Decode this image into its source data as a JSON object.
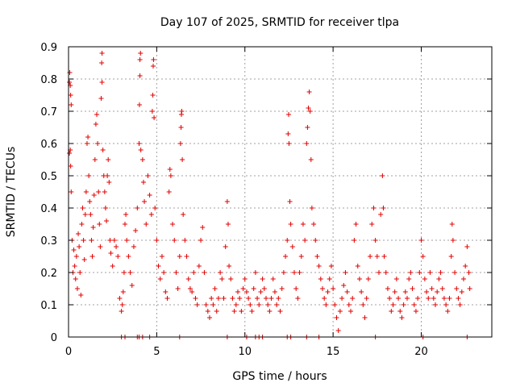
{
  "chart_data": {
    "type": "scatter",
    "title": "Day 107 of 2025, SRMTID for receiver tlpa",
    "xlabel": "GPS time / hours",
    "ylabel": "SRMTID / TECUs",
    "xlim": [
      0,
      24
    ],
    "ylim": [
      0,
      0.9
    ],
    "xticks": [
      0,
      5,
      10,
      15,
      20
    ],
    "xtick_labels": [
      "0",
      "5",
      "10",
      "15",
      "20"
    ],
    "yticks": [
      0,
      0.1,
      0.2,
      0.3,
      0.4,
      0.5,
      0.6,
      0.7,
      0.8,
      0.9
    ],
    "ytick_labels": [
      "0",
      "0.1",
      "0.2",
      "0.3",
      "0.4",
      "0.5",
      "0.6",
      "0.7",
      "0.8",
      "0.9"
    ],
    "grid": true,
    "marker": "+",
    "color": "#e00000",
    "series": [
      {
        "name": "SRMTID",
        "points": [
          [
            0.05,
            0.79
          ],
          [
            0.07,
            0.82
          ],
          [
            0.1,
            0.78
          ],
          [
            0.12,
            0.75
          ],
          [
            0.15,
            0.72
          ],
          [
            0.05,
            0.57
          ],
          [
            0.1,
            0.58
          ],
          [
            0.12,
            0.53
          ],
          [
            0.15,
            0.45
          ],
          [
            0.2,
            0.3
          ],
          [
            0.25,
            0.2
          ],
          [
            0.3,
            0.27
          ],
          [
            0.35,
            0.22
          ],
          [
            0.4,
            0.18
          ],
          [
            0.45,
            0.25
          ],
          [
            0.5,
            0.15
          ],
          [
            0.55,
            0.32
          ],
          [
            0.6,
            0.28
          ],
          [
            0.65,
            0.2
          ],
          [
            0.7,
            0.13
          ],
          [
            0.75,
            0.35
          ],
          [
            0.8,
            0.4
          ],
          [
            0.85,
            0.3
          ],
          [
            0.9,
            0.24
          ],
          [
            0.95,
            0.38
          ],
          [
            1.0,
            0.45
          ],
          [
            1.05,
            0.6
          ],
          [
            1.1,
            0.62
          ],
          [
            1.15,
            0.5
          ],
          [
            1.2,
            0.42
          ],
          [
            1.25,
            0.38
          ],
          [
            1.3,
            0.3
          ],
          [
            1.35,
            0.25
          ],
          [
            1.4,
            0.34
          ],
          [
            1.45,
            0.44
          ],
          [
            1.5,
            0.55
          ],
          [
            1.55,
            0.66
          ],
          [
            1.6,
            0.69
          ],
          [
            1.65,
            0.6
          ],
          [
            1.7,
            0.45
          ],
          [
            1.75,
            0.35
          ],
          [
            1.8,
            0.28
          ],
          [
            1.85,
            0.74
          ],
          [
            1.9,
            0.79
          ],
          [
            1.88,
            0.85
          ],
          [
            1.9,
            0.88
          ],
          [
            1.95,
            0.58
          ],
          [
            2.0,
            0.5
          ],
          [
            2.05,
            0.45
          ],
          [
            2.1,
            0.4
          ],
          [
            2.15,
            0.36
          ],
          [
            2.2,
            0.5
          ],
          [
            2.25,
            0.55
          ],
          [
            2.3,
            0.48
          ],
          [
            2.35,
            0.3
          ],
          [
            2.4,
            0.26
          ],
          [
            2.5,
            0.22
          ],
          [
            2.6,
            0.3
          ],
          [
            2.7,
            0.28
          ],
          [
            2.8,
            0.25
          ],
          [
            2.9,
            0.12
          ],
          [
            3.0,
            0.08
          ],
          [
            3.05,
            0.1
          ],
          [
            3.1,
            0.14
          ],
          [
            3.15,
            0.2
          ],
          [
            3.2,
            0.35
          ],
          [
            3.25,
            0.38
          ],
          [
            3.3,
            0.3
          ],
          [
            3.4,
            0.25
          ],
          [
            3.5,
            0.2
          ],
          [
            3.6,
            0.16
          ],
          [
            3.7,
            0.28
          ],
          [
            3.8,
            0.33
          ],
          [
            3.9,
            0.4
          ],
          [
            4.0,
            0.6
          ],
          [
            4.02,
            0.72
          ],
          [
            4.05,
            0.81
          ],
          [
            4.05,
            0.86
          ],
          [
            4.08,
            0.88
          ],
          [
            4.1,
            0.58
          ],
          [
            4.2,
            0.55
          ],
          [
            4.25,
            0.48
          ],
          [
            4.3,
            0.42
          ],
          [
            4.4,
            0.35
          ],
          [
            4.5,
            0.5
          ],
          [
            4.6,
            0.44
          ],
          [
            4.7,
            0.38
          ],
          [
            4.75,
            0.7
          ],
          [
            4.78,
            0.75
          ],
          [
            4.8,
            0.84
          ],
          [
            4.82,
            0.86
          ],
          [
            4.85,
            0.68
          ],
          [
            4.9,
            0.4
          ],
          [
            5.0,
            0.3
          ],
          [
            5.1,
            0.22
          ],
          [
            5.2,
            0.18
          ],
          [
            5.3,
            0.25
          ],
          [
            5.4,
            0.2
          ],
          [
            5.5,
            0.14
          ],
          [
            5.6,
            0.12
          ],
          [
            5.7,
            0.45
          ],
          [
            5.75,
            0.52
          ],
          [
            5.8,
            0.5
          ],
          [
            5.9,
            0.35
          ],
          [
            6.0,
            0.3
          ],
          [
            6.1,
            0.2
          ],
          [
            6.2,
            0.15
          ],
          [
            6.3,
            0.25
          ],
          [
            6.35,
            0.6
          ],
          [
            6.38,
            0.65
          ],
          [
            6.4,
            0.69
          ],
          [
            6.42,
            0.7
          ],
          [
            6.45,
            0.55
          ],
          [
            6.5,
            0.38
          ],
          [
            6.6,
            0.3
          ],
          [
            6.7,
            0.25
          ],
          [
            6.8,
            0.18
          ],
          [
            6.9,
            0.15
          ],
          [
            7.0,
            0.14
          ],
          [
            7.1,
            0.2
          ],
          [
            7.2,
            0.12
          ],
          [
            7.3,
            0.1
          ],
          [
            7.4,
            0.22
          ],
          [
            7.5,
            0.3
          ],
          [
            7.6,
            0.34
          ],
          [
            7.7,
            0.2
          ],
          [
            7.8,
            0.1
          ],
          [
            7.9,
            0.08
          ],
          [
            8.0,
            0.06
          ],
          [
            8.1,
            0.12
          ],
          [
            8.2,
            0.1
          ],
          [
            8.3,
            0.15
          ],
          [
            8.4,
            0.08
          ],
          [
            8.5,
            0.12
          ],
          [
            8.6,
            0.2
          ],
          [
            8.7,
            0.18
          ],
          [
            8.8,
            0.12
          ],
          [
            8.9,
            0.28
          ],
          [
            9.0,
            0.42
          ],
          [
            9.05,
            0.35
          ],
          [
            9.1,
            0.22
          ],
          [
            9.2,
            0.18
          ],
          [
            9.3,
            0.12
          ],
          [
            9.4,
            0.08
          ],
          [
            9.5,
            0.1
          ],
          [
            9.6,
            0.14
          ],
          [
            9.7,
            0.12
          ],
          [
            9.8,
            0.08
          ],
          [
            9.9,
            0.15
          ],
          [
            10.0,
            0.18
          ],
          [
            10.1,
            0.14
          ],
          [
            10.2,
            0.12
          ],
          [
            10.3,
            0.1
          ],
          [
            10.4,
            0.08
          ],
          [
            10.5,
            0.15
          ],
          [
            10.6,
            0.2
          ],
          [
            10.7,
            0.12
          ],
          [
            10.8,
            0.1
          ],
          [
            10.9,
            0.14
          ],
          [
            11.0,
            0.18
          ],
          [
            11.1,
            0.15
          ],
          [
            11.2,
            0.12
          ],
          [
            11.3,
            0.1
          ],
          [
            11.4,
            0.08
          ],
          [
            11.5,
            0.12
          ],
          [
            11.6,
            0.18
          ],
          [
            11.7,
            0.14
          ],
          [
            11.8,
            0.1
          ],
          [
            11.9,
            0.12
          ],
          [
            12.0,
            0.08
          ],
          [
            12.1,
            0.15
          ],
          [
            12.2,
            0.2
          ],
          [
            12.3,
            0.25
          ],
          [
            12.4,
            0.3
          ],
          [
            12.45,
            0.63
          ],
          [
            12.48,
            0.69
          ],
          [
            12.5,
            0.6
          ],
          [
            12.55,
            0.42
          ],
          [
            12.6,
            0.35
          ],
          [
            12.7,
            0.28
          ],
          [
            12.8,
            0.2
          ],
          [
            12.9,
            0.15
          ],
          [
            13.0,
            0.12
          ],
          [
            13.1,
            0.2
          ],
          [
            13.2,
            0.25
          ],
          [
            13.3,
            0.35
          ],
          [
            13.4,
            0.3
          ],
          [
            13.5,
            0.6
          ],
          [
            13.55,
            0.65
          ],
          [
            13.6,
            0.71
          ],
          [
            13.65,
            0.76
          ],
          [
            13.7,
            0.7
          ],
          [
            13.75,
            0.55
          ],
          [
            13.8,
            0.4
          ],
          [
            13.9,
            0.35
          ],
          [
            14.0,
            0.3
          ],
          [
            14.1,
            0.25
          ],
          [
            14.2,
            0.22
          ],
          [
            14.3,
            0.18
          ],
          [
            14.4,
            0.15
          ],
          [
            14.5,
            0.12
          ],
          [
            14.6,
            0.1
          ],
          [
            14.7,
            0.14
          ],
          [
            14.8,
            0.18
          ],
          [
            14.9,
            0.22
          ],
          [
            15.0,
            0.15
          ],
          [
            15.1,
            0.1
          ],
          [
            15.2,
            0.06
          ],
          [
            15.3,
            0.02
          ],
          [
            15.4,
            0.08
          ],
          [
            15.5,
            0.12
          ],
          [
            15.6,
            0.16
          ],
          [
            15.7,
            0.2
          ],
          [
            15.8,
            0.14
          ],
          [
            15.9,
            0.1
          ],
          [
            16.0,
            0.08
          ],
          [
            16.1,
            0.12
          ],
          [
            16.2,
            0.3
          ],
          [
            16.3,
            0.35
          ],
          [
            16.4,
            0.22
          ],
          [
            16.5,
            0.18
          ],
          [
            16.6,
            0.14
          ],
          [
            16.7,
            0.1
          ],
          [
            16.8,
            0.06
          ],
          [
            16.9,
            0.12
          ],
          [
            17.0,
            0.18
          ],
          [
            17.1,
            0.25
          ],
          [
            17.2,
            0.35
          ],
          [
            17.3,
            0.4
          ],
          [
            17.4,
            0.3
          ],
          [
            17.5,
            0.25
          ],
          [
            17.6,
            0.2
          ],
          [
            17.7,
            0.38
          ],
          [
            17.8,
            0.5
          ],
          [
            17.85,
            0.4
          ],
          [
            17.9,
            0.25
          ],
          [
            18.0,
            0.2
          ],
          [
            18.1,
            0.15
          ],
          [
            18.2,
            0.12
          ],
          [
            18.3,
            0.08
          ],
          [
            18.4,
            0.1
          ],
          [
            18.5,
            0.14
          ],
          [
            18.6,
            0.18
          ],
          [
            18.7,
            0.12
          ],
          [
            18.8,
            0.08
          ],
          [
            18.9,
            0.06
          ],
          [
            19.0,
            0.1
          ],
          [
            19.1,
            0.14
          ],
          [
            19.2,
            0.12
          ],
          [
            19.3,
            0.18
          ],
          [
            19.4,
            0.2
          ],
          [
            19.5,
            0.15
          ],
          [
            19.6,
            0.1
          ],
          [
            19.7,
            0.08
          ],
          [
            19.8,
            0.12
          ],
          [
            19.9,
            0.2
          ],
          [
            20.0,
            0.3
          ],
          [
            20.1,
            0.25
          ],
          [
            20.2,
            0.18
          ],
          [
            20.3,
            0.14
          ],
          [
            20.4,
            0.12
          ],
          [
            20.5,
            0.2
          ],
          [
            20.6,
            0.15
          ],
          [
            20.7,
            0.12
          ],
          [
            20.8,
            0.1
          ],
          [
            20.9,
            0.14
          ],
          [
            21.0,
            0.18
          ],
          [
            21.1,
            0.2
          ],
          [
            21.2,
            0.15
          ],
          [
            21.3,
            0.12
          ],
          [
            21.4,
            0.1
          ],
          [
            21.5,
            0.08
          ],
          [
            21.6,
            0.12
          ],
          [
            21.7,
            0.25
          ],
          [
            21.75,
            0.35
          ],
          [
            21.8,
            0.3
          ],
          [
            21.9,
            0.2
          ],
          [
            22.0,
            0.15
          ],
          [
            22.1,
            0.12
          ],
          [
            22.2,
            0.1
          ],
          [
            22.3,
            0.14
          ],
          [
            22.4,
            0.18
          ],
          [
            22.5,
            0.22
          ],
          [
            22.6,
            0.28
          ],
          [
            22.7,
            0.2
          ],
          [
            22.75,
            0.15
          ],
          [
            3.0,
            0
          ],
          [
            3.2,
            0
          ],
          [
            3.9,
            0
          ],
          [
            4.0,
            0
          ],
          [
            4.2,
            0
          ],
          [
            4.6,
            0
          ],
          [
            6.3,
            0
          ],
          [
            9.0,
            0
          ],
          [
            10.1,
            0
          ],
          [
            10.6,
            0
          ],
          [
            10.8,
            0
          ],
          [
            11.0,
            0
          ],
          [
            12.4,
            0
          ],
          [
            12.6,
            0
          ],
          [
            13.5,
            0
          ],
          [
            14.2,
            0
          ],
          [
            17.4,
            0
          ],
          [
            20.1,
            0
          ],
          [
            22.6,
            0
          ]
        ]
      }
    ]
  }
}
